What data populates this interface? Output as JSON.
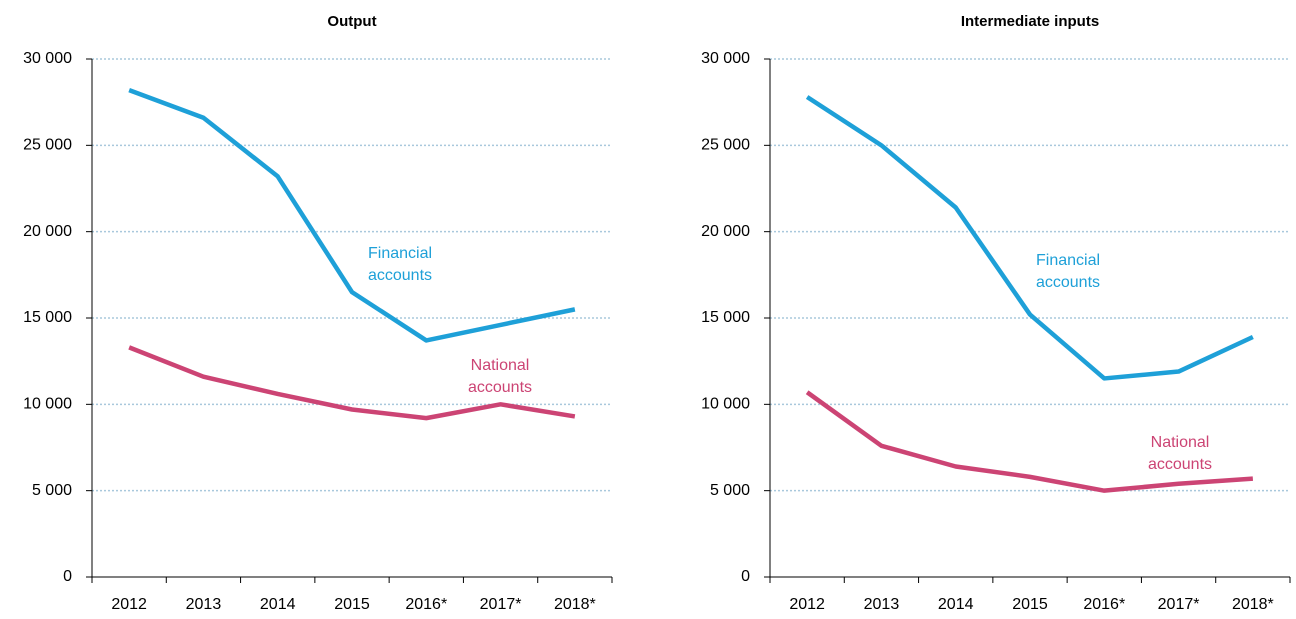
{
  "chart_data": [
    {
      "type": "line",
      "title": "Output",
      "categories": [
        "2012",
        "2013",
        "2014",
        "2015",
        "2016*",
        "2017*",
        "2018*"
      ],
      "series": [
        {
          "name": "Financial accounts",
          "annotation": [
            "Financial",
            "accounts"
          ],
          "color": "#1ea0d8",
          "values": [
            28200,
            26600,
            23200,
            16500,
            13700,
            14600,
            15500
          ]
        },
        {
          "name": "National accounts",
          "annotation": [
            "National",
            "accounts"
          ],
          "color": "#cc4474",
          "values": [
            13300,
            11600,
            10600,
            9700,
            9200,
            10000,
            9300
          ]
        }
      ],
      "ylim": [
        0,
        30000
      ],
      "yticks": [
        0,
        {
          "value": 5000,
          "label": "5 000"
        },
        {
          "value": 10000,
          "label": "10 000"
        },
        {
          "value": 15000,
          "label": "15 000"
        },
        {
          "value": 20000,
          "label": "20 000"
        },
        {
          "value": 25000,
          "label": "25 000"
        },
        {
          "value": 30000,
          "label": "30 000"
        }
      ],
      "grid": true
    },
    {
      "type": "line",
      "title": "Intermediate inputs",
      "categories": [
        "2012",
        "2013",
        "2014",
        "2015",
        "2016*",
        "2017*",
        "2018*"
      ],
      "series": [
        {
          "name": "Financial accounts",
          "annotation": [
            "Financial",
            "accounts"
          ],
          "color": "#1ea0d8",
          "values": [
            27800,
            25000,
            21400,
            15200,
            11500,
            11900,
            13900
          ]
        },
        {
          "name": "National accounts",
          "annotation": [
            "National",
            "accounts"
          ],
          "color": "#cc4474",
          "values": [
            10700,
            7600,
            6400,
            5800,
            5000,
            5400,
            5700
          ]
        }
      ],
      "ylim": [
        0,
        30000
      ],
      "yticks": [
        0,
        {
          "value": 5000,
          "label": "5 000"
        },
        {
          "value": 10000,
          "label": "10 000"
        },
        {
          "value": 15000,
          "label": "15 000"
        },
        {
          "value": 20000,
          "label": "20 000"
        },
        {
          "value": 25000,
          "label": "25 000"
        },
        {
          "value": 30000,
          "label": "30 000"
        }
      ],
      "grid": true
    }
  ]
}
